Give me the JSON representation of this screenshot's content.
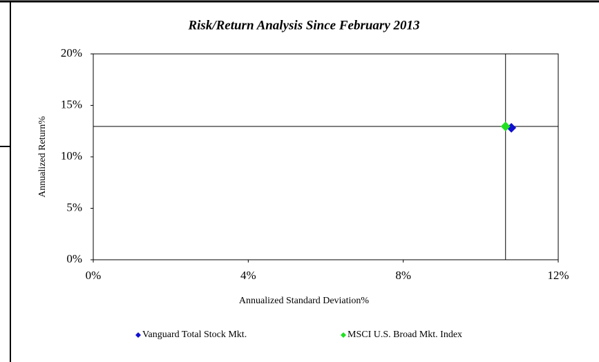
{
  "chart_data": {
    "type": "scatter",
    "title": "Risk/Return Analysis Since February 2013",
    "x_label": "Annualized Standard Deviation%",
    "y_label": "Annualized Return%",
    "series": [
      {
        "name": "Vanguard Total Stock Mkt.",
        "color": "#1010d0",
        "x": [
          10.79
        ],
        "values": [
          12.82
        ]
      },
      {
        "name": "MSCI U.S. Broad Mkt. Index",
        "color": "#20e020",
        "x": [
          10.64
        ],
        "values": [
          12.95
        ]
      }
    ],
    "xlim": [
      0,
      12
    ],
    "xticks": [
      {
        "value": 0,
        "label": "0%"
      },
      {
        "value": 4,
        "label": "4%"
      },
      {
        "value": 8,
        "label": "8%"
      },
      {
        "value": 12,
        "label": "12%"
      }
    ],
    "ylim": [
      0,
      20
    ],
    "yticks": [
      {
        "value": 0,
        "label": "0%"
      },
      {
        "value": 5,
        "label": "5%"
      },
      {
        "value": 10,
        "label": "10%"
      },
      {
        "value": 15,
        "label": "15%"
      },
      {
        "value": 20,
        "label": "20%"
      }
    ],
    "legend": "bottom"
  }
}
